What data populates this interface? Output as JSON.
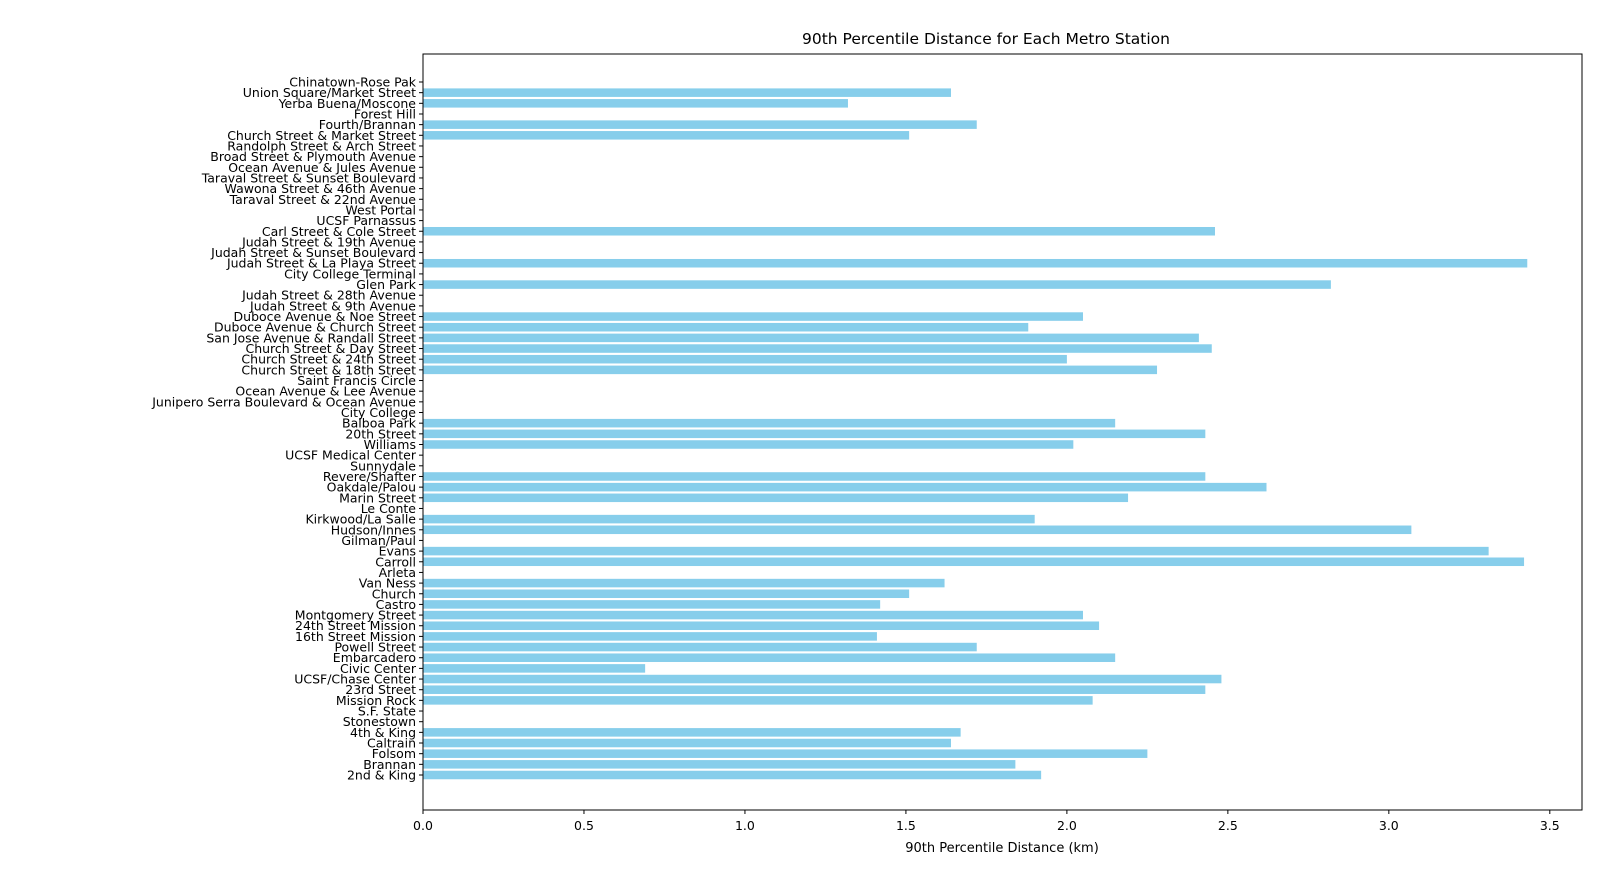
{
  "chart_data": {
    "type": "bar",
    "orientation": "horizontal",
    "title": "90th Percentile Distance for Each Metro Station",
    "xlabel": "90th Percentile Distance (km)",
    "ylabel": "",
    "xlim": [
      0,
      3.6
    ],
    "xticks": [
      "0.0",
      "0.5",
      "1.0",
      "1.5",
      "2.0",
      "2.5",
      "3.0",
      "3.5"
    ],
    "grid": false,
    "bar_color": "#87CEEB",
    "categories": [
      "Chinatown-Rose Pak",
      "Union Square/Market Street",
      "Yerba Buena/Moscone",
      "Forest Hill",
      "Fourth/Brannan",
      "Church Street & Market Street",
      "Randolph Street & Arch Street",
      "Broad Street & Plymouth Avenue",
      "Ocean Avenue & Jules Avenue",
      "Taraval Street & Sunset Boulevard",
      "Wawona Street & 46th Avenue",
      "Taraval Street & 22nd Avenue",
      "West Portal",
      "UCSF Parnassus",
      "Carl Street & Cole Street",
      "Judah Street & 19th Avenue",
      "Judah Street & Sunset Boulevard",
      "Judah Street & La Playa Street",
      "City College Terminal",
      "Glen Park",
      "Judah Street & 28th Avenue",
      "Judah Street & 9th Avenue",
      "Duboce Avenue & Noe Street",
      "Duboce Avenue & Church Street",
      "San Jose Avenue & Randall Street",
      "Church Street & Day Street",
      "Church Street & 24th Street",
      "Church Street & 18th Street",
      "Saint Francis Circle",
      "Ocean Avenue & Lee Avenue",
      "Junipero Serra Boulevard & Ocean Avenue",
      "City College",
      "Balboa Park",
      "20th Street",
      "Williams",
      "UCSF Medical Center",
      "Sunnydale",
      "Revere/Shafter",
      "Oakdale/Palou",
      "Marin Street",
      "Le Conte",
      "Kirkwood/La Salle",
      "Hudson/Innes",
      "Gilman/Paul",
      "Evans",
      "Carroll",
      "Arleta",
      "Van Ness",
      "Church",
      "Castro",
      "Montgomery Street",
      "24th Street Mission",
      "16th Street Mission",
      "Powell Street",
      "Embarcadero",
      "Civic Center",
      "UCSF/Chase Center",
      "23rd Street",
      "Mission Rock",
      "S.F. State",
      "Stonestown",
      "4th & King",
      "Caltrain",
      "Folsom",
      "Brannan",
      "2nd & King"
    ],
    "values": [
      0,
      1.64,
      1.32,
      0,
      1.72,
      1.51,
      0,
      0,
      0,
      0,
      0,
      0,
      0,
      0,
      2.46,
      0,
      0,
      3.43,
      0,
      2.82,
      0,
      0,
      2.05,
      1.88,
      2.41,
      2.45,
      2.0,
      2.28,
      0,
      0,
      0,
      0,
      2.15,
      2.43,
      2.02,
      0,
      0,
      2.43,
      2.62,
      2.19,
      0,
      1.9,
      3.07,
      0,
      3.31,
      3.42,
      0,
      1.62,
      1.51,
      1.42,
      2.05,
      2.1,
      1.41,
      1.72,
      2.15,
      0.69,
      2.48,
      2.43,
      2.08,
      0,
      0,
      1.67,
      1.64,
      2.25,
      1.84,
      1.92
    ]
  }
}
